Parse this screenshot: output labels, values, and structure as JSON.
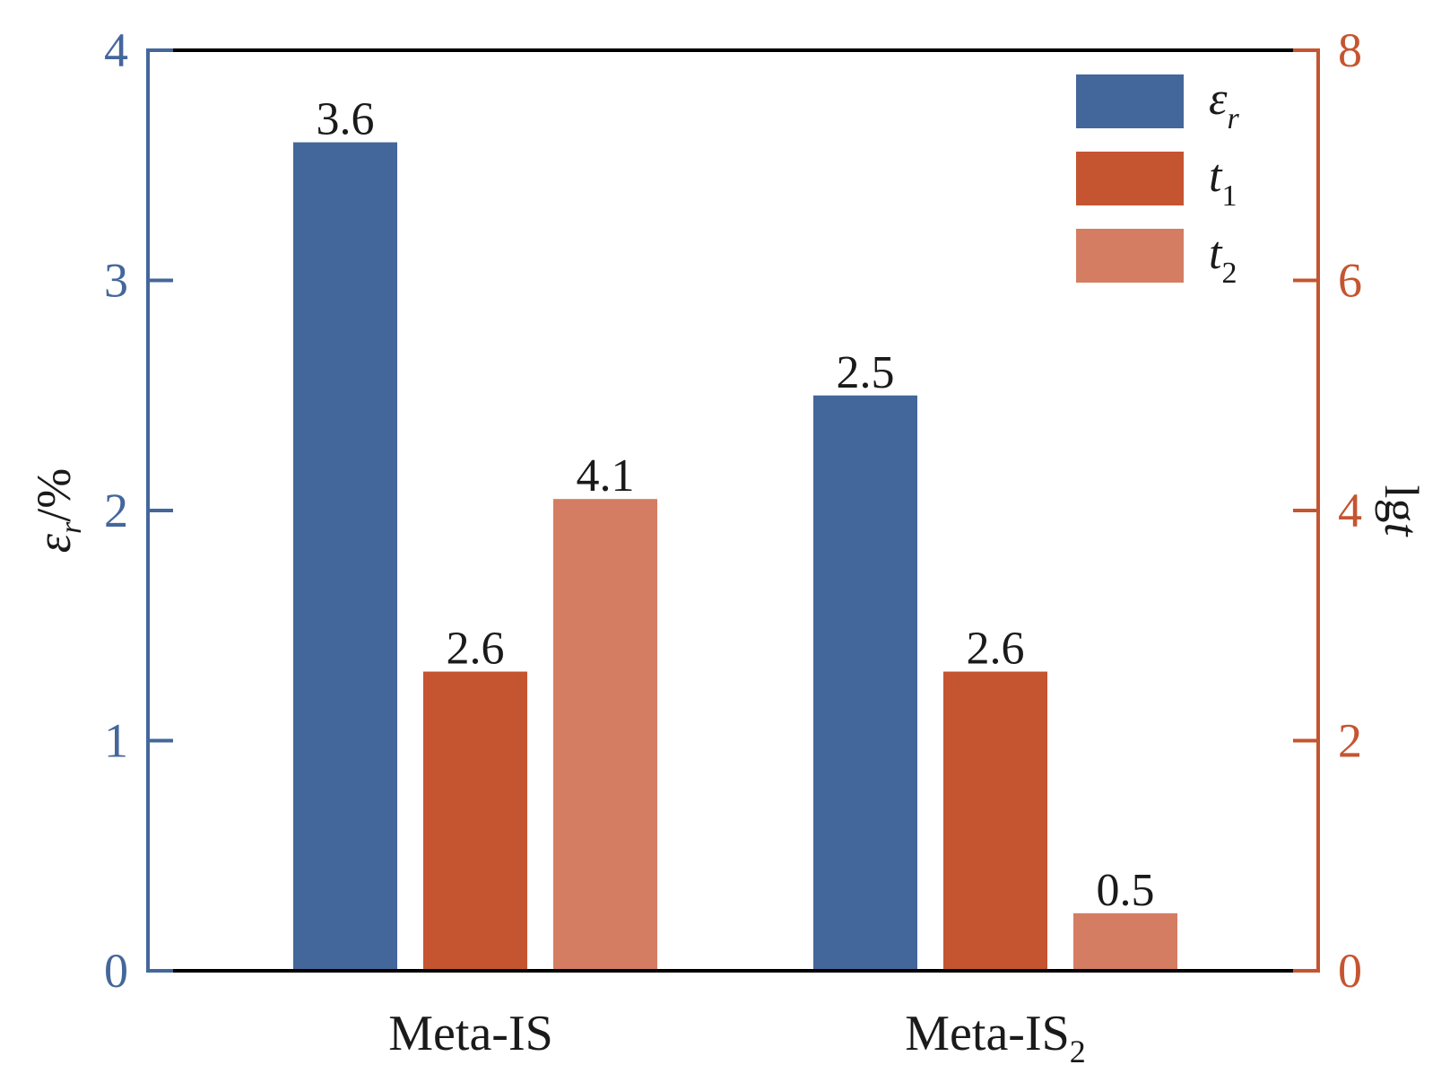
{
  "colors": {
    "series_er": "#44679b",
    "series_t1": "#c55530",
    "series_t2": "#d47d62",
    "left_axis": "#44679b",
    "right_axis": "#c55530",
    "frame": "#000000",
    "text": "#1a1a1a"
  },
  "chart_data": {
    "type": "bar",
    "categories": [
      {
        "main": "Meta-IS",
        "sub": ""
      },
      {
        "main": "Meta-IS",
        "sub": "2"
      }
    ],
    "left_axis": {
      "label_main": "ε",
      "label_sub": "r",
      "label_tail": "/%",
      "ylim": [
        0,
        4
      ],
      "ticks": [
        "0",
        "1",
        "2",
        "3",
        "4"
      ]
    },
    "right_axis": {
      "label_main": "lg",
      "label_italic": "t",
      "ylim": [
        0,
        8
      ],
      "ticks": [
        "0",
        "2",
        "4",
        "6",
        "8"
      ]
    },
    "series": [
      {
        "name_main": "ε",
        "name_sub": "r",
        "axis": "left",
        "color_key": "series_er",
        "values": [
          3.6,
          2.5
        ],
        "labels": [
          "3.6",
          "2.5"
        ]
      },
      {
        "name_main": "t",
        "name_sub": "1",
        "axis": "right",
        "color_key": "series_t1",
        "values": [
          2.6,
          2.6
        ],
        "labels": [
          "2.6",
          "2.6"
        ]
      },
      {
        "name_main": "t",
        "name_sub": "2",
        "axis": "right",
        "color_key": "series_t2",
        "values": [
          4.1,
          0.5
        ],
        "labels": [
          "4.1",
          "0.5"
        ]
      }
    ],
    "legend_position": "top-right",
    "grid": false
  }
}
